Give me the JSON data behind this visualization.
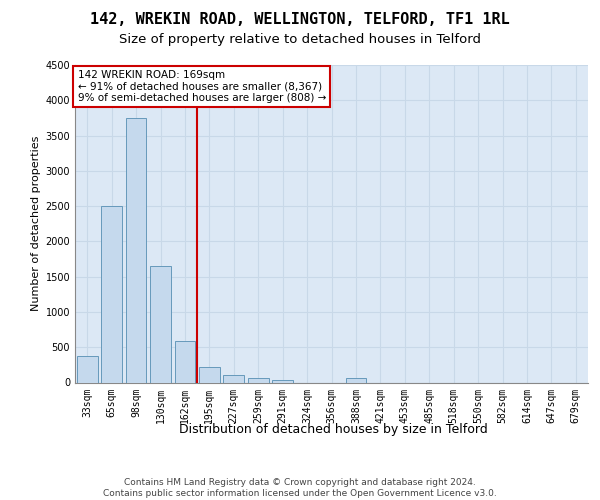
{
  "title1": "142, WREKIN ROAD, WELLINGTON, TELFORD, TF1 1RL",
  "title2": "Size of property relative to detached houses in Telford",
  "xlabel": "Distribution of detached houses by size in Telford",
  "ylabel": "Number of detached properties",
  "categories": [
    "33sqm",
    "65sqm",
    "98sqm",
    "130sqm",
    "162sqm",
    "195sqm",
    "227sqm",
    "259sqm",
    "291sqm",
    "324sqm",
    "356sqm",
    "388sqm",
    "421sqm",
    "453sqm",
    "485sqm",
    "518sqm",
    "550sqm",
    "582sqm",
    "614sqm",
    "647sqm",
    "679sqm"
  ],
  "values": [
    370,
    2500,
    3750,
    1650,
    590,
    220,
    100,
    60,
    40,
    0,
    0,
    60,
    0,
    0,
    0,
    0,
    0,
    0,
    0,
    0,
    0
  ],
  "bar_color": "#c5d9ed",
  "bar_edge_color": "#6699bb",
  "vline_x": 4.5,
  "vline_color": "#cc0000",
  "annotation_line1": "142 WREKIN ROAD: 169sqm",
  "annotation_line2": "← 91% of detached houses are smaller (8,367)",
  "annotation_line3": "9% of semi-detached houses are larger (808) →",
  "annotation_box_edge": "#cc0000",
  "ylim_max": 4500,
  "yticks": [
    0,
    500,
    1000,
    1500,
    2000,
    2500,
    3000,
    3500,
    4000,
    4500
  ],
  "bg_color": "#dce8f5",
  "grid_color": "#c8d8e8",
  "title1_fontsize": 11,
  "title2_fontsize": 9.5,
  "xlabel_fontsize": 9,
  "ylabel_fontsize": 8,
  "tick_fontsize": 7,
  "annot_fontsize": 7.5,
  "footer_line1": "Contains HM Land Registry data © Crown copyright and database right 2024.",
  "footer_line2": "Contains public sector information licensed under the Open Government Licence v3.0.",
  "footer_fontsize": 6.5
}
